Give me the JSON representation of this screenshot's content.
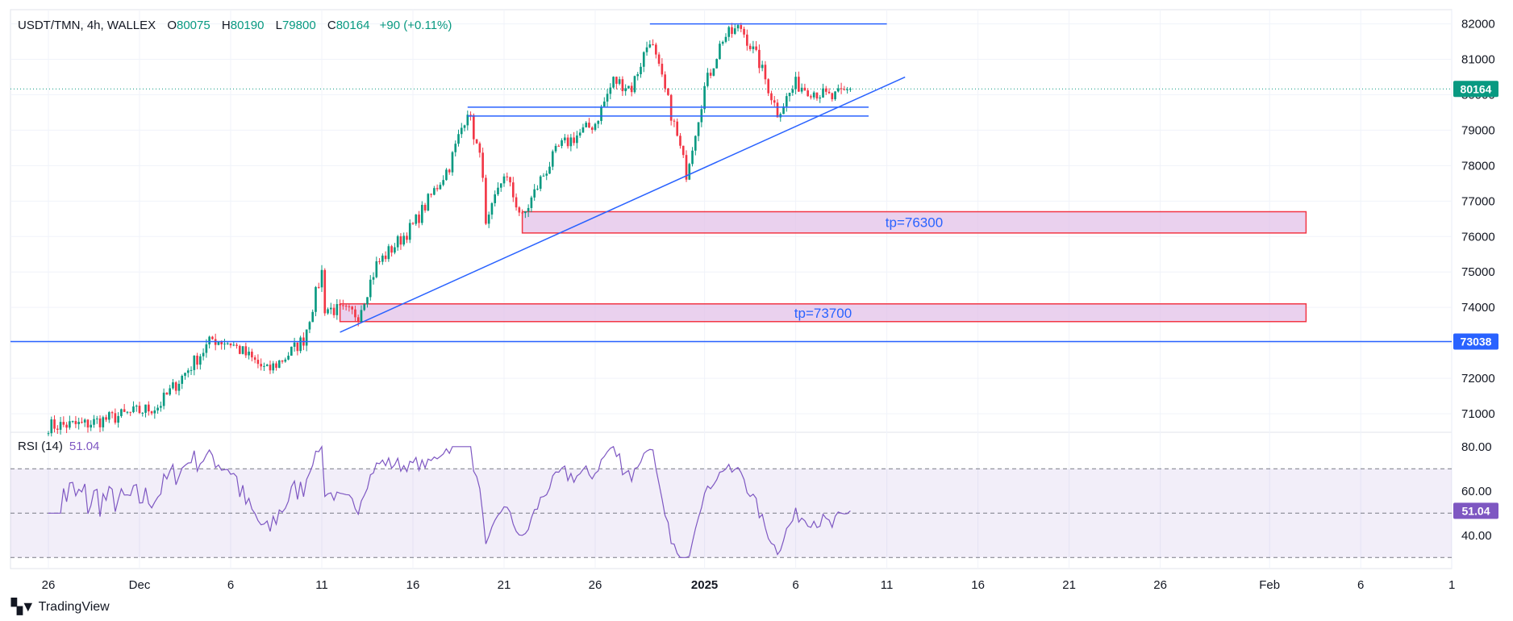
{
  "header": {
    "symbol": "USDT/TMN, 4h, WALLEX",
    "open_label": "O",
    "open": "80075",
    "high_label": "H",
    "high": "80190",
    "low_label": "L",
    "low": "79800",
    "close_label": "C",
    "close": "80164",
    "change": "+90 (+0.11%)"
  },
  "rsi_header": {
    "label": "RSI (14)",
    "value": "51.04"
  },
  "brand": {
    "name": "TradingView",
    "logo_icon": "tradingview-logo-icon"
  },
  "colors": {
    "up": "#089981",
    "down": "#f23645",
    "trendline": "#2962ff",
    "rsi": "#7e57c2",
    "zone_fill": "#e1bee7",
    "zone_border": "#f23645"
  },
  "chart_data": [
    {
      "type": "candlestick",
      "xlabel": "",
      "ylabel": "",
      "x_ticks": [
        "26",
        "Dec",
        "6",
        "11",
        "16",
        "21",
        "26",
        "2025",
        "6",
        "11",
        "16",
        "21",
        "26",
        "Feb",
        "6",
        "1"
      ],
      "y_ticks": [
        71000,
        72000,
        73000,
        74000,
        75000,
        76000,
        77000,
        78000,
        79000,
        80000,
        81000,
        82000
      ],
      "ylim": [
        70500,
        82400
      ],
      "last_price": 80164,
      "last_price_label": "80164",
      "key_level": 73038,
      "key_level_label": "73038",
      "anchors": [
        [
          "Nov 23",
          70600
        ],
        [
          "Nov 28",
          70700
        ],
        [
          "Dec 2",
          71200
        ],
        [
          "Dec 5",
          73100
        ],
        [
          "Dec 6",
          73000
        ],
        [
          "Dec 8",
          72200
        ],
        [
          "Dec 9",
          72600
        ],
        [
          "Dec 10",
          73100
        ],
        [
          "Dec 11",
          75000
        ],
        [
          "Dec 11",
          74000
        ],
        [
          "Dec 13",
          73800
        ],
        [
          "Dec 14",
          75200
        ],
        [
          "Dec 16",
          76300
        ],
        [
          "Dec 18",
          78000
        ],
        [
          "Dec 19",
          79600
        ],
        [
          "Dec 20",
          77500
        ],
        [
          "Dec 20",
          76200
        ],
        [
          "Dec 21",
          77800
        ],
        [
          "Dec 22",
          76500
        ],
        [
          "Dec 23",
          77600
        ],
        [
          "Dec 24",
          78500
        ],
        [
          "Dec 26",
          79200
        ],
        [
          "Dec 27",
          80400
        ],
        [
          "Dec 28",
          80200
        ],
        [
          "Dec 29",
          81600
        ],
        [
          "Dec 30",
          79800
        ],
        [
          "Dec 31",
          77800
        ],
        [
          "Jan 1",
          80200
        ],
        [
          "Jan 2",
          81600
        ],
        [
          "Jan 3",
          81900
        ],
        [
          "Jan 4",
          80900
        ],
        [
          "Jan 5",
          79500
        ],
        [
          "Jan 6",
          80300
        ],
        [
          "Jan 7",
          80100
        ],
        [
          "Jan 8",
          79900
        ],
        [
          "Jan 9",
          80164
        ]
      ],
      "rsi": {
        "ylim": [
          25,
          85
        ],
        "y_ticks": [
          40,
          60,
          80
        ],
        "y_tick_labels": [
          "40.00",
          "60.00",
          "80.00"
        ],
        "bands": [
          30,
          50,
          70
        ],
        "last": 51.04,
        "last_label": "51.04"
      },
      "drawings": [
        {
          "kind": "trendline",
          "from": [
            "Dec 12",
            73300
          ],
          "to": [
            "Jan 12",
            80500
          ]
        },
        {
          "kind": "resistance",
          "from": [
            "Dec 29",
            82000
          ],
          "to": [
            "Jan 11",
            82000
          ]
        },
        {
          "kind": "support",
          "from": [
            "Dec 19",
            79650
          ],
          "to": [
            "Jan 10",
            79650
          ]
        },
        {
          "kind": "support",
          "from": [
            "Dec 19",
            79400
          ],
          "to": [
            "Jan 10",
            79400
          ]
        },
        {
          "kind": "zone",
          "from": [
            "Dec 22",
            76700
          ],
          "to": [
            "Feb 3",
            76100
          ],
          "label": "tp=76300"
        },
        {
          "kind": "zone",
          "from": [
            "Dec 12",
            74100
          ],
          "to": [
            "Feb 3",
            73600
          ],
          "label": "tp=73700"
        }
      ]
    }
  ]
}
